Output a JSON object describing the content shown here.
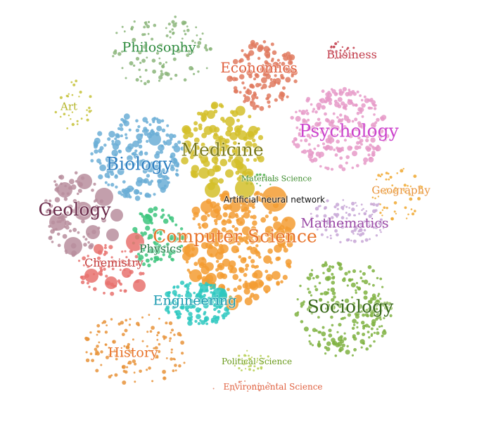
{
  "clusters": [
    {
      "key": "philosophy",
      "label": "Philosophy",
      "color": "#8bb57a"
    },
    {
      "key": "economics",
      "label": "Economics",
      "color": "#e07a5f"
    },
    {
      "key": "business",
      "label": "Business",
      "color": "#c23b4a"
    },
    {
      "key": "art",
      "label": "Art",
      "color": "#c5c23a"
    },
    {
      "key": "biology",
      "label": "Biology",
      "color": "#6baed6"
    },
    {
      "key": "medicine",
      "label": "Medicine",
      "color": "#d4c02a"
    },
    {
      "key": "psychology",
      "label": "Psychology",
      "color": "#e69ac8"
    },
    {
      "key": "materials",
      "label": "Materials Science",
      "color": "#4daf4a"
    },
    {
      "key": "geography",
      "label": "Geography",
      "color": "#f0a830"
    },
    {
      "key": "geology",
      "label": "Geology",
      "color": "#b88e9e"
    },
    {
      "key": "ann",
      "label": "Artificial neural network",
      "color": "#f39c33"
    },
    {
      "key": "mathematics",
      "label": "Mathematics",
      "color": "#c7a6d6"
    },
    {
      "key": "cs",
      "label": "Computer Science",
      "color": "#f39c33"
    },
    {
      "key": "physics",
      "label": "Physics",
      "color": "#3cc47c"
    },
    {
      "key": "chemistry",
      "label": "Chemistry",
      "color": "#e8726f"
    },
    {
      "key": "engineering",
      "label": "Engineering",
      "color": "#2dc8c0"
    },
    {
      "key": "sociology",
      "label": "Sociology",
      "color": "#7fb241"
    },
    {
      "key": "history",
      "label": "History",
      "color": "#e8933a"
    },
    {
      "key": "polisci",
      "label": "Political Science",
      "color": "#b5cf4f"
    },
    {
      "key": "envsci",
      "label": "Environmental Science",
      "color": "#e07a5f"
    }
  ]
}
